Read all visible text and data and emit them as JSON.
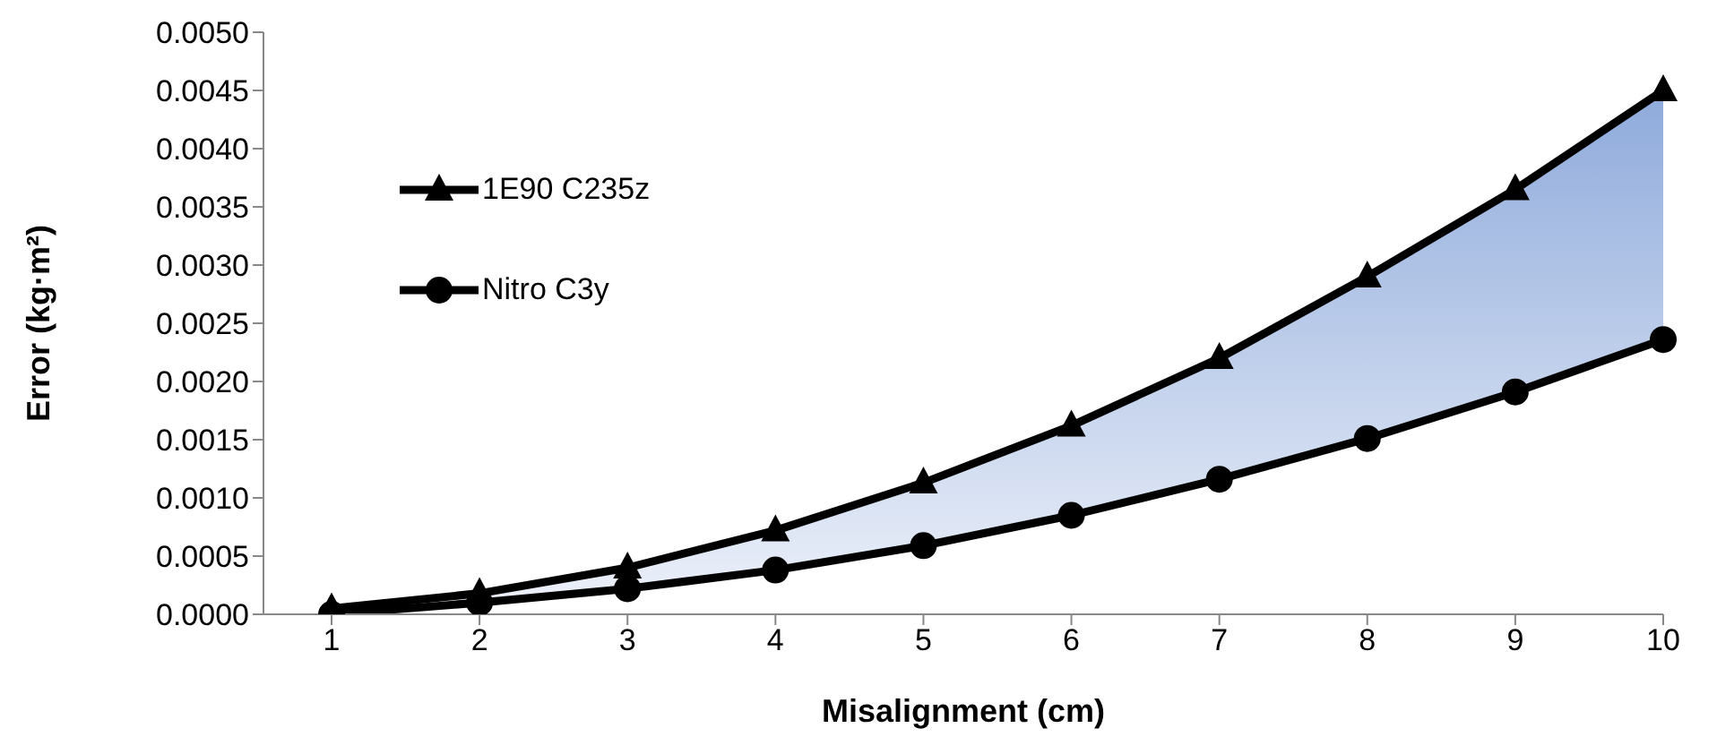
{
  "chart_data": {
    "type": "line",
    "xlabel": "Misalignment (cm)",
    "ylabel": "Error (kg·m²)",
    "categories": [
      "1",
      "2",
      "3",
      "4",
      "5",
      "6",
      "7",
      "8",
      "9",
      "10"
    ],
    "series": [
      {
        "name": "1E90 C235z",
        "color": "#000000",
        "marker": "triangle",
        "values": [
          5e-05,
          0.00018,
          0.0004,
          0.00072,
          0.00113,
          0.00162,
          0.0022,
          0.0029,
          0.00365,
          0.0045
        ],
        "lower": [
          0,
          0.0001,
          0.00022,
          0.00038,
          0.00059,
          0.00085,
          0.00116,
          0.00151,
          0.00191,
          0.00236
        ],
        "upper": [
          5e-05,
          0.00018,
          0.0004,
          0.00072,
          0.00113,
          0.00162,
          0.0022,
          0.0029,
          0.00365,
          0.0045
        ]
      },
      {
        "name": "Nitro C3y",
        "color": "#000000",
        "marker": "circle",
        "values": [
          0,
          0.0001,
          0.00022,
          0.00038,
          0.00059,
          0.00085,
          0.00116,
          0.00151,
          0.00191,
          0.00236
        ]
      }
    ],
    "ylim": [
      0,
      0.005
    ],
    "yticks": [
      {
        "value": 0,
        "label": "0.0000"
      },
      {
        "value": 0.0005,
        "label": "0.0005"
      },
      {
        "value": 0.001,
        "label": "0.0010"
      },
      {
        "value": 0.0015,
        "label": "0.0015"
      },
      {
        "value": 0.002,
        "label": "0.0020"
      },
      {
        "value": 0.0025,
        "label": "0.0025"
      },
      {
        "value": 0.003,
        "label": "0.0030"
      },
      {
        "value": 0.0035,
        "label": "0.0035"
      },
      {
        "value": 0.004,
        "label": "0.0040"
      },
      {
        "value": 0.0045,
        "label": "0.0045"
      },
      {
        "value": 0.005,
        "label": "0.0050"
      }
    ],
    "grid": false,
    "legend": "top left"
  }
}
